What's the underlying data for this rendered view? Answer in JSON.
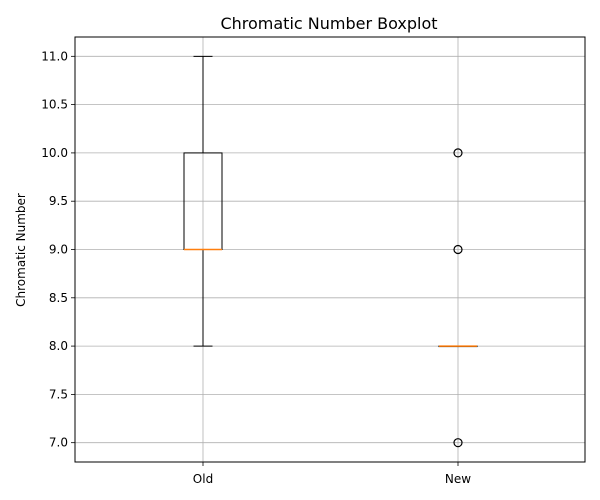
{
  "chart_data": {
    "type": "boxplot",
    "title": "Chromatic Number Boxplot",
    "xlabel": "",
    "ylabel": "Chromatic Number",
    "ylim": [
      6.8,
      11.2
    ],
    "yticks": [
      "7.0",
      "7.5",
      "8.0",
      "8.5",
      "9.0",
      "9.5",
      "10.0",
      "10.5",
      "11.0"
    ],
    "grid": true,
    "categories": [
      "Old",
      "New"
    ],
    "boxes": [
      {
        "category": "Old",
        "whisker_low": 8.0,
        "q1": 9.0,
        "median": 9.0,
        "q3": 10.0,
        "whisker_high": 11.0,
        "outliers": []
      },
      {
        "category": "New",
        "whisker_low": 8.0,
        "q1": 8.0,
        "median": 8.0,
        "q3": 8.0,
        "whisker_high": 8.0,
        "outliers": [
          7.0,
          9.0,
          10.0
        ]
      }
    ],
    "colors": {
      "box": "#000000",
      "median": "#ff7f0e",
      "grid": "#b0b0b0"
    }
  }
}
